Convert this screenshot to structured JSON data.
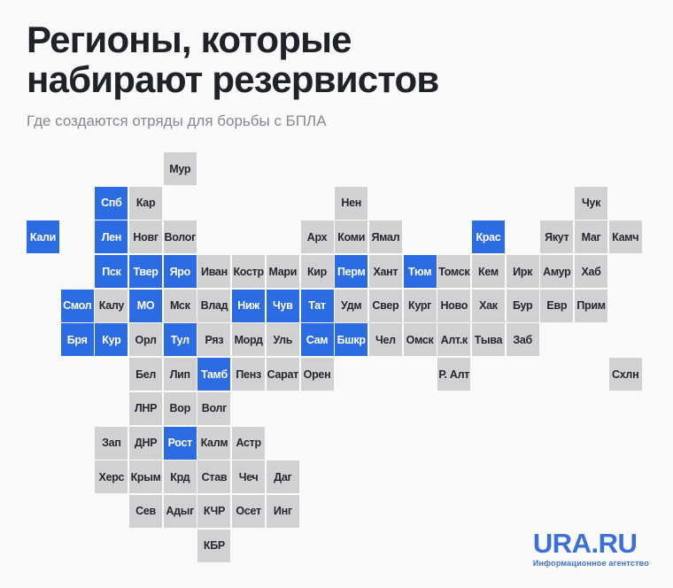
{
  "header": {
    "title_line1": "Регионы, которые",
    "title_line2": "набирают резервистов",
    "subtitle": "Где создаются отряды для борьбы с БПЛА"
  },
  "map": {
    "colors": {
      "highlighted_tile": "#2c6ce3",
      "default_tile": "#d1d1d3",
      "label_on_default": "#25272f",
      "label_on_highlighted": "#ffffff"
    },
    "tiles": [
      {
        "label": "Мур",
        "col": 4,
        "row": 0,
        "highlighted": false
      },
      {
        "label": "Спб",
        "col": 2,
        "row": 1,
        "highlighted": true
      },
      {
        "label": "Кар",
        "col": 3,
        "row": 1,
        "highlighted": false
      },
      {
        "label": "Нен",
        "col": 9,
        "row": 1,
        "highlighted": false
      },
      {
        "label": "Чук",
        "col": 16,
        "row": 1,
        "highlighted": false
      },
      {
        "label": "Кали",
        "col": 0,
        "row": 2,
        "highlighted": true
      },
      {
        "label": "Лен",
        "col": 2,
        "row": 2,
        "highlighted": true
      },
      {
        "label": "Новг",
        "col": 3,
        "row": 2,
        "highlighted": false
      },
      {
        "label": "Волог",
        "col": 4,
        "row": 2,
        "highlighted": false
      },
      {
        "label": "Арх",
        "col": 8,
        "row": 2,
        "highlighted": false
      },
      {
        "label": "Коми",
        "col": 9,
        "row": 2,
        "highlighted": false
      },
      {
        "label": "Ямал",
        "col": 10,
        "row": 2,
        "highlighted": false
      },
      {
        "label": "Крас",
        "col": 13,
        "row": 2,
        "highlighted": true
      },
      {
        "label": "Якут",
        "col": 15,
        "row": 2,
        "highlighted": false
      },
      {
        "label": "Маг",
        "col": 16,
        "row": 2,
        "highlighted": false
      },
      {
        "label": "Камч",
        "col": 17,
        "row": 2,
        "highlighted": false
      },
      {
        "label": "Пск",
        "col": 2,
        "row": 3,
        "highlighted": true
      },
      {
        "label": "Твер",
        "col": 3,
        "row": 3,
        "highlighted": true
      },
      {
        "label": "Яро",
        "col": 4,
        "row": 3,
        "highlighted": true
      },
      {
        "label": "Иван",
        "col": 5,
        "row": 3,
        "highlighted": false
      },
      {
        "label": "Костр",
        "col": 6,
        "row": 3,
        "highlighted": false
      },
      {
        "label": "Мари",
        "col": 7,
        "row": 3,
        "highlighted": false
      },
      {
        "label": "Кир",
        "col": 8,
        "row": 3,
        "highlighted": false
      },
      {
        "label": "Перм",
        "col": 9,
        "row": 3,
        "highlighted": true
      },
      {
        "label": "Хант",
        "col": 10,
        "row": 3,
        "highlighted": false
      },
      {
        "label": "Тюм",
        "col": 11,
        "row": 3,
        "highlighted": true
      },
      {
        "label": "Томск",
        "col": 12,
        "row": 3,
        "highlighted": false
      },
      {
        "label": "Кем",
        "col": 13,
        "row": 3,
        "highlighted": false
      },
      {
        "label": "Ирк",
        "col": 14,
        "row": 3,
        "highlighted": false
      },
      {
        "label": "Амур",
        "col": 15,
        "row": 3,
        "highlighted": false
      },
      {
        "label": "Хаб",
        "col": 16,
        "row": 3,
        "highlighted": false
      },
      {
        "label": "Смол",
        "col": 1,
        "row": 4,
        "highlighted": true
      },
      {
        "label": "Калу",
        "col": 2,
        "row": 4,
        "highlighted": false
      },
      {
        "label": "МО",
        "col": 3,
        "row": 4,
        "highlighted": true
      },
      {
        "label": "Мск",
        "col": 4,
        "row": 4,
        "highlighted": false
      },
      {
        "label": "Влад",
        "col": 5,
        "row": 4,
        "highlighted": false
      },
      {
        "label": "Ниж",
        "col": 6,
        "row": 4,
        "highlighted": true
      },
      {
        "label": "Чув",
        "col": 7,
        "row": 4,
        "highlighted": true
      },
      {
        "label": "Тат",
        "col": 8,
        "row": 4,
        "highlighted": true
      },
      {
        "label": "Удм",
        "col": 9,
        "row": 4,
        "highlighted": false
      },
      {
        "label": "Свер",
        "col": 10,
        "row": 4,
        "highlighted": false
      },
      {
        "label": "Кург",
        "col": 11,
        "row": 4,
        "highlighted": false
      },
      {
        "label": "Ново",
        "col": 12,
        "row": 4,
        "highlighted": false
      },
      {
        "label": "Хак",
        "col": 13,
        "row": 4,
        "highlighted": false
      },
      {
        "label": "Бур",
        "col": 14,
        "row": 4,
        "highlighted": false
      },
      {
        "label": "Евр",
        "col": 15,
        "row": 4,
        "highlighted": false
      },
      {
        "label": "Прим",
        "col": 16,
        "row": 4,
        "highlighted": false
      },
      {
        "label": "Бря",
        "col": 1,
        "row": 5,
        "highlighted": true
      },
      {
        "label": "Кур",
        "col": 2,
        "row": 5,
        "highlighted": true
      },
      {
        "label": "Орл",
        "col": 3,
        "row": 5,
        "highlighted": false
      },
      {
        "label": "Тул",
        "col": 4,
        "row": 5,
        "highlighted": true
      },
      {
        "label": "Ряз",
        "col": 5,
        "row": 5,
        "highlighted": false
      },
      {
        "label": "Морд",
        "col": 6,
        "row": 5,
        "highlighted": false
      },
      {
        "label": "Уль",
        "col": 7,
        "row": 5,
        "highlighted": false
      },
      {
        "label": "Сам",
        "col": 8,
        "row": 5,
        "highlighted": true
      },
      {
        "label": "Бшкр",
        "col": 9,
        "row": 5,
        "highlighted": true
      },
      {
        "label": "Чел",
        "col": 10,
        "row": 5,
        "highlighted": false
      },
      {
        "label": "Омск",
        "col": 11,
        "row": 5,
        "highlighted": false
      },
      {
        "label": "Алт.к",
        "col": 12,
        "row": 5,
        "highlighted": false
      },
      {
        "label": "Тыва",
        "col": 13,
        "row": 5,
        "highlighted": false
      },
      {
        "label": "Заб",
        "col": 14,
        "row": 5,
        "highlighted": false
      },
      {
        "label": "Бел",
        "col": 3,
        "row": 6,
        "highlighted": false
      },
      {
        "label": "Лип",
        "col": 4,
        "row": 6,
        "highlighted": false
      },
      {
        "label": "Тамб",
        "col": 5,
        "row": 6,
        "highlighted": true
      },
      {
        "label": "Пенз",
        "col": 6,
        "row": 6,
        "highlighted": false
      },
      {
        "label": "Сарат",
        "col": 7,
        "row": 6,
        "highlighted": false
      },
      {
        "label": "Орен",
        "col": 8,
        "row": 6,
        "highlighted": false
      },
      {
        "label": "Р. Алт",
        "col": 12,
        "row": 6,
        "highlighted": false
      },
      {
        "label": "Схлн",
        "col": 17,
        "row": 6,
        "highlighted": false
      },
      {
        "label": "ЛНР",
        "col": 3,
        "row": 7,
        "highlighted": false
      },
      {
        "label": "Вор",
        "col": 4,
        "row": 7,
        "highlighted": false
      },
      {
        "label": "Волг",
        "col": 5,
        "row": 7,
        "highlighted": false
      },
      {
        "label": "Зап",
        "col": 2,
        "row": 8,
        "highlighted": false
      },
      {
        "label": "ДНР",
        "col": 3,
        "row": 8,
        "highlighted": false
      },
      {
        "label": "Рост",
        "col": 4,
        "row": 8,
        "highlighted": true
      },
      {
        "label": "Калм",
        "col": 5,
        "row": 8,
        "highlighted": false
      },
      {
        "label": "Астр",
        "col": 6,
        "row": 8,
        "highlighted": false
      },
      {
        "label": "Херс",
        "col": 2,
        "row": 9,
        "highlighted": false
      },
      {
        "label": "Крым",
        "col": 3,
        "row": 9,
        "highlighted": false
      },
      {
        "label": "Крд",
        "col": 4,
        "row": 9,
        "highlighted": false
      },
      {
        "label": "Став",
        "col": 5,
        "row": 9,
        "highlighted": false
      },
      {
        "label": "Чеч",
        "col": 6,
        "row": 9,
        "highlighted": false
      },
      {
        "label": "Даг",
        "col": 7,
        "row": 9,
        "highlighted": false
      },
      {
        "label": "Сев",
        "col": 3,
        "row": 10,
        "highlighted": false
      },
      {
        "label": "Адыг",
        "col": 4,
        "row": 10,
        "highlighted": false
      },
      {
        "label": "КЧР",
        "col": 5,
        "row": 10,
        "highlighted": false
      },
      {
        "label": "Осет",
        "col": 6,
        "row": 10,
        "highlighted": false
      },
      {
        "label": "Инг",
        "col": 7,
        "row": 10,
        "highlighted": false
      },
      {
        "label": "КБР",
        "col": 5,
        "row": 11,
        "highlighted": false
      }
    ]
  },
  "footer": {
    "logo_text": "URA.RU",
    "logo_tagline": "Информационное агентство",
    "logo_color": "#3d6fd8"
  }
}
